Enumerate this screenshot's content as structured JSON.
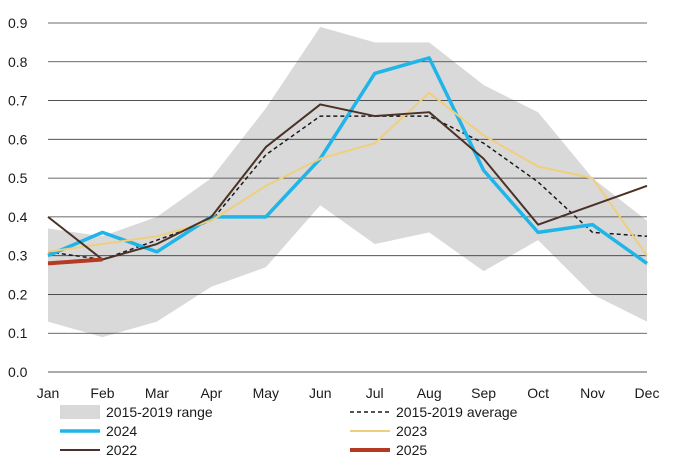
{
  "chart_data": {
    "type": "line",
    "title": "",
    "xlabel": "",
    "ylabel": "",
    "ylim": [
      0,
      0.9
    ],
    "yticks": [
      "0.0",
      "0.1",
      "0.2",
      "0.3",
      "0.4",
      "0.5",
      "0.6",
      "0.7",
      "0.8",
      "0.9"
    ],
    "categories": [
      "Jan",
      "Feb",
      "Mar",
      "Apr",
      "May",
      "Jun",
      "Jul",
      "Aug",
      "Sep",
      "Oct",
      "Nov",
      "Dec"
    ],
    "grid": "horizontal",
    "legend_position": "bottom",
    "range": {
      "name": "2015-2019 range",
      "color": "#d9d9d9",
      "upper": [
        0.37,
        0.35,
        0.4,
        0.5,
        0.68,
        0.89,
        0.85,
        0.85,
        0.74,
        0.67,
        0.5,
        0.39
      ],
      "lower": [
        0.13,
        0.09,
        0.13,
        0.22,
        0.27,
        0.43,
        0.33,
        0.36,
        0.26,
        0.34,
        0.2,
        0.13
      ]
    },
    "series": [
      {
        "name": "2015-2019 average",
        "color": "#1a1a1a",
        "dashed": true,
        "width": 1.5,
        "values": [
          0.31,
          0.29,
          0.34,
          0.39,
          0.56,
          0.66,
          0.66,
          0.66,
          0.59,
          0.49,
          0.36,
          0.35
        ]
      },
      {
        "name": "2024",
        "color": "#1fb5e8",
        "dashed": false,
        "width": 3.5,
        "values": [
          0.3,
          0.36,
          0.31,
          0.4,
          0.4,
          0.55,
          0.77,
          0.81,
          0.52,
          0.36,
          0.38,
          0.28
        ]
      },
      {
        "name": "2023",
        "color": "#f0cf7c",
        "dashed": false,
        "width": 2,
        "values": [
          0.31,
          0.33,
          0.35,
          0.39,
          0.48,
          0.55,
          0.59,
          0.72,
          0.61,
          0.53,
          0.5,
          0.3
        ]
      },
      {
        "name": "2022",
        "color": "#4a3228",
        "dashed": false,
        "width": 2,
        "values": [
          0.4,
          0.29,
          0.33,
          0.4,
          0.58,
          0.69,
          0.66,
          0.67,
          0.55,
          0.38,
          0.43,
          0.48
        ]
      },
      {
        "name": "2025",
        "color": "#b53a22",
        "dashed": false,
        "width": 4,
        "values": [
          0.28,
          0.29,
          null,
          null,
          null,
          null,
          null,
          null,
          null,
          null,
          null,
          null
        ]
      }
    ]
  }
}
